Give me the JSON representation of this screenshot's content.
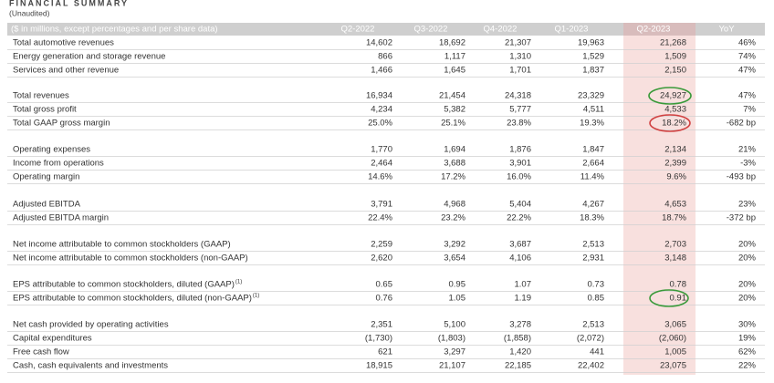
{
  "header": {
    "title": "FINANCIAL SUMMARY",
    "subtitle": "(Unaudited)"
  },
  "table": {
    "columns": [
      "($ in millions, except percentages and per share data)",
      "Q2-2022",
      "Q3-2022",
      "Q4-2022",
      "Q1-2023",
      "Q2-2023",
      "YoY"
    ],
    "groups": [
      {
        "rows": [
          {
            "label": "Total automotive revenues",
            "cells": [
              "14,602",
              "18,692",
              "21,307",
              "19,963",
              "21,268",
              "46%"
            ]
          },
          {
            "label": "Energy generation and storage revenue",
            "cells": [
              "866",
              "1,117",
              "1,310",
              "1,529",
              "1,509",
              "74%"
            ]
          },
          {
            "label": "Services and other revenue",
            "cells": [
              "1,466",
              "1,645",
              "1,701",
              "1,837",
              "2,150",
              "47%"
            ]
          }
        ]
      },
      {
        "rows": [
          {
            "label": "Total revenues",
            "cells": [
              "16,934",
              "21,454",
              "24,318",
              "23,329",
              "24,927",
              "47%"
            ]
          },
          {
            "label": "Total gross profit",
            "cells": [
              "4,234",
              "5,382",
              "5,777",
              "4,511",
              "4,533",
              "7%"
            ]
          },
          {
            "label": "Total GAAP gross margin",
            "cells": [
              "25.0%",
              "25.1%",
              "23.8%",
              "19.3%",
              "18.2%",
              "-682 bp"
            ]
          }
        ]
      },
      {
        "rows": [
          {
            "label": "Operating expenses",
            "cells": [
              "1,770",
              "1,694",
              "1,876",
              "1,847",
              "2,134",
              "21%"
            ]
          },
          {
            "label": "Income from operations",
            "cells": [
              "2,464",
              "3,688",
              "3,901",
              "2,664",
              "2,399",
              "-3%"
            ]
          },
          {
            "label": "Operating margin",
            "cells": [
              "14.6%",
              "17.2%",
              "16.0%",
              "11.4%",
              "9.6%",
              "-493 bp"
            ]
          }
        ]
      },
      {
        "rows": [
          {
            "label": "Adjusted EBITDA",
            "cells": [
              "3,791",
              "4,968",
              "5,404",
              "4,267",
              "4,653",
              "23%"
            ]
          },
          {
            "label": "Adjusted EBITDA margin",
            "cells": [
              "22.4%",
              "23.2%",
              "22.2%",
              "18.3%",
              "18.7%",
              "-372 bp"
            ]
          }
        ]
      },
      {
        "rows": [
          {
            "label": "Net income attributable to common stockholders (GAAP)",
            "cells": [
              "2,259",
              "3,292",
              "3,687",
              "2,513",
              "2,703",
              "20%"
            ]
          },
          {
            "label": "Net income attributable to common stockholders (non-GAAP)",
            "cells": [
              "2,620",
              "3,654",
              "4,106",
              "2,931",
              "3,148",
              "20%"
            ]
          }
        ]
      },
      {
        "rows": [
          {
            "label": "EPS attributable to common stockholders, diluted (GAAP)",
            "footnote": "(1)",
            "cells": [
              "0.65",
              "0.95",
              "1.07",
              "0.73",
              "0.78",
              "20%"
            ]
          },
          {
            "label": "EPS attributable to common stockholders, diluted (non-GAAP)",
            "footnote": "(1)",
            "cells": [
              "0.76",
              "1.05",
              "1.19",
              "0.85",
              "0.91",
              "20%"
            ]
          }
        ]
      },
      {
        "rows": [
          {
            "label": "Net cash provided by operating activities",
            "cells": [
              "2,351",
              "5,100",
              "3,278",
              "2,513",
              "3,065",
              "30%"
            ]
          },
          {
            "label": "Capital expenditures",
            "cells": [
              "(1,730)",
              "(1,803)",
              "(1,858)",
              "(2,072)",
              "(2,060)",
              "19%"
            ]
          },
          {
            "label": "Free cash flow",
            "cells": [
              "621",
              "3,297",
              "1,420",
              "441",
              "1,005",
              "62%"
            ]
          },
          {
            "label": "Cash, cash equivalents and investments",
            "cells": [
              "18,915",
              "21,107",
              "22,185",
              "22,402",
              "23,075",
              "22%"
            ]
          }
        ]
      }
    ]
  }
}
